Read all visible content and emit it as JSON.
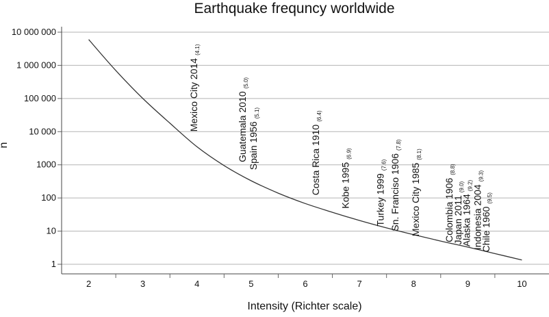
{
  "chart_data": {
    "type": "line",
    "title": "Earthquake frequncy worldwide",
    "xlabel": "Intensity (Richter scale)",
    "ylabel": "n",
    "x_scale": "linear",
    "y_scale": "log",
    "xlim": [
      1.5,
      10.5
    ],
    "ylim": [
      1,
      10000000
    ],
    "x_ticks": [
      "2",
      "3",
      "4",
      "5",
      "6",
      "7",
      "8",
      "9",
      "10"
    ],
    "y_ticks": [
      {
        "value": 1,
        "label": "1"
      },
      {
        "value": 10,
        "label": "10"
      },
      {
        "value": 100,
        "label": "100"
      },
      {
        "value": 1000,
        "label": "1000"
      },
      {
        "value": 10000,
        "label": "10 000"
      },
      {
        "value": 100000,
        "label": "100 000"
      },
      {
        "value": 1000000,
        "label": "1 000 000"
      },
      {
        "value": 10000000,
        "label": "10 000 000"
      }
    ],
    "grid": "horizontal",
    "series": [
      {
        "color": "#333333",
        "x": [
          2.0,
          2.5,
          3.0,
          3.5,
          4.0,
          4.5,
          5.0,
          5.5,
          6.0,
          6.5,
          7.0,
          7.5,
          8.0,
          8.5,
          9.0,
          9.5,
          10.0
        ],
        "y": [
          6000000,
          700000,
          100000,
          18000,
          3500,
          950,
          330,
          140,
          68,
          37,
          21,
          12.5,
          7.8,
          5,
          3.3,
          2.1,
          1.35
        ]
      }
    ],
    "annotations": [
      {
        "text": "Mexico City 2014",
        "sub": "(4.1)",
        "x": 4.0,
        "y": 10000
      },
      {
        "text": "Guatemala 2010",
        "sub": "(5.0)",
        "x": 4.9,
        "y": 1200
      },
      {
        "text": "Spain 1956",
        "sub": "(5.1)",
        "x": 5.1,
        "y": 700
      },
      {
        "text": "Costa Rica 1910",
        "sub": "(6.4)",
        "x": 6.25,
        "y": 120
      },
      {
        "text": "Kobe 1995",
        "sub": "(6.9)",
        "x": 6.8,
        "y": 48
      },
      {
        "text": "Turkey 1999",
        "sub": "(7.6)",
        "x": 7.45,
        "y": 14
      },
      {
        "text": "Sn. Franciso 1906",
        "sub": "(7.8)",
        "x": 7.72,
        "y": 10
      },
      {
        "text": "Mexico City 1985",
        "sub": "(8.1)",
        "x": 8.1,
        "y": 7
      },
      {
        "text": "Colombia 1906",
        "sub": "(8.8)",
        "x": 8.72,
        "y": 4.6
      },
      {
        "text": "Japan 2011",
        "sub": "(9.0)",
        "x": 8.88,
        "y": 3.9
      },
      {
        "text": "Alaska 1964",
        "sub": "(9.2)",
        "x": 9.04,
        "y": 3.4
      },
      {
        "text": "Indonesia 2004",
        "sub": "(9.3)",
        "x": 9.24,
        "y": 2.7
      },
      {
        "text": "Chile 1960",
        "sub": "(9.5)",
        "x": 9.4,
        "y": 2.3
      }
    ]
  }
}
